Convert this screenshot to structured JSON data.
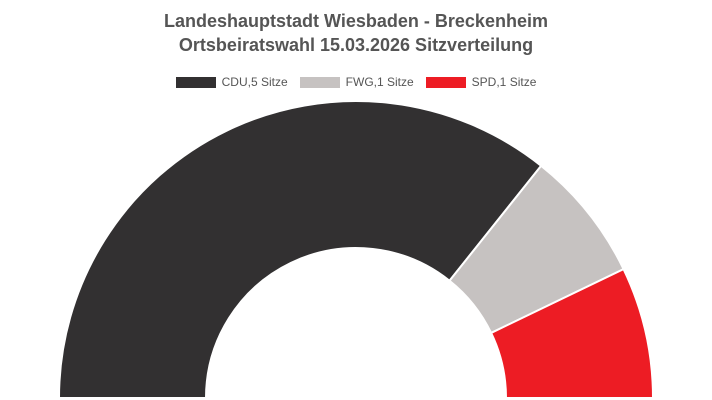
{
  "title_line1": "Landeshauptstadt Wiesbaden - Breckenheim",
  "title_line2": "Ortsbeiratswahl 15.03.2026 Sitzverteilung",
  "chart_data": {
    "type": "pie",
    "variant": "half-donut",
    "title": "Landeshauptstadt Wiesbaden - Breckenheim Ortsbeiratswahl 15.03.2026 Sitzverteilung",
    "legend_position": "top",
    "categories": [
      "CDU",
      "FWG",
      "SPD"
    ],
    "values": [
      5,
      1,
      1
    ],
    "legend_labels": [
      "CDU,5 Sitze",
      "FWG,1 Sitze",
      "SPD,1 Sitze"
    ],
    "colors": [
      "#323031",
      "#c6c2c1",
      "#ed1c24"
    ]
  }
}
